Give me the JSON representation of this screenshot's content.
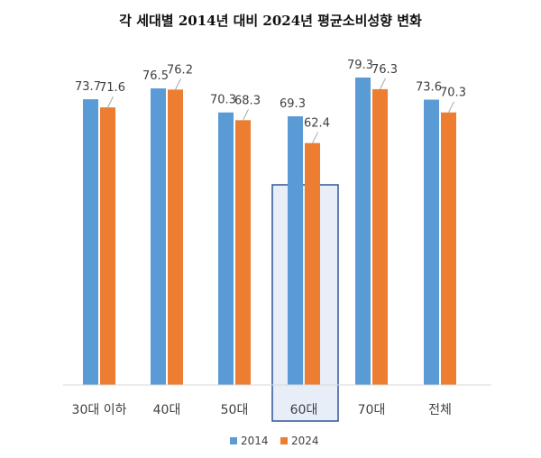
{
  "chart_data": {
    "type": "bar",
    "title": "각 세대별 2014년 대비 2024년 평균소비성향 변화",
    "categories": [
      "30대 이하",
      "40대",
      "50대",
      "60대",
      "70대",
      "전체"
    ],
    "series": [
      {
        "name": "2014",
        "values": [
          73.7,
          76.5,
          70.3,
          69.3,
          79.3,
          73.6
        ],
        "color": "#5B9BD5"
      },
      {
        "name": "2024",
        "values": [
          71.6,
          76.2,
          68.3,
          62.4,
          76.3,
          70.3
        ],
        "color": "#ED7D31"
      }
    ],
    "highlight": {
      "category": "60대",
      "fill": "#E8EEF8",
      "stroke": "#2F5597"
    },
    "data_labels": true,
    "grid": false,
    "legend": "bottom",
    "xlabel": "",
    "ylabel": ""
  }
}
